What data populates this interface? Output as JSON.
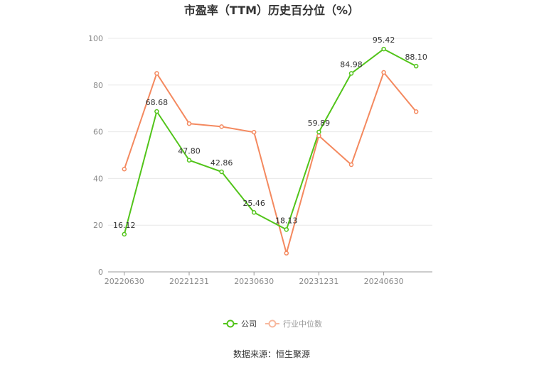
{
  "chart_data": {
    "type": "line",
    "title": "市盈率（TTM）历史百分位（%）",
    "x": [
      "20220630",
      "20220930",
      "20221231",
      "20230331",
      "20230630",
      "20230930",
      "20231231",
      "20240331",
      "20240630",
      "20240930"
    ],
    "x_tick_labels": [
      "20220630",
      "20221231",
      "20230630",
      "20231231",
      "20240630"
    ],
    "series": [
      {
        "name": "公司",
        "color": "#52c41a",
        "values": [
          16.12,
          68.68,
          47.8,
          42.86,
          25.46,
          18.13,
          59.89,
          84.98,
          95.42,
          88.1
        ],
        "labels": [
          "16.12",
          "68.68",
          "47.80",
          "42.86",
          "25.46",
          "18.13",
          "59.89",
          "84.98",
          "95.42",
          "88.10"
        ]
      },
      {
        "name": "行业中位数",
        "color": "#f4895f",
        "values": [
          44,
          85,
          63.5,
          62.2,
          59.8,
          8,
          58.3,
          45.9,
          85.4,
          68.6
        ]
      }
    ],
    "ylim": [
      0,
      100
    ],
    "yticks": [
      0,
      20,
      40,
      60,
      80,
      100
    ],
    "grid": true,
    "legend": "bottom-center",
    "xlabel": "",
    "ylabel": ""
  },
  "source": "数据来源：恒生聚源"
}
